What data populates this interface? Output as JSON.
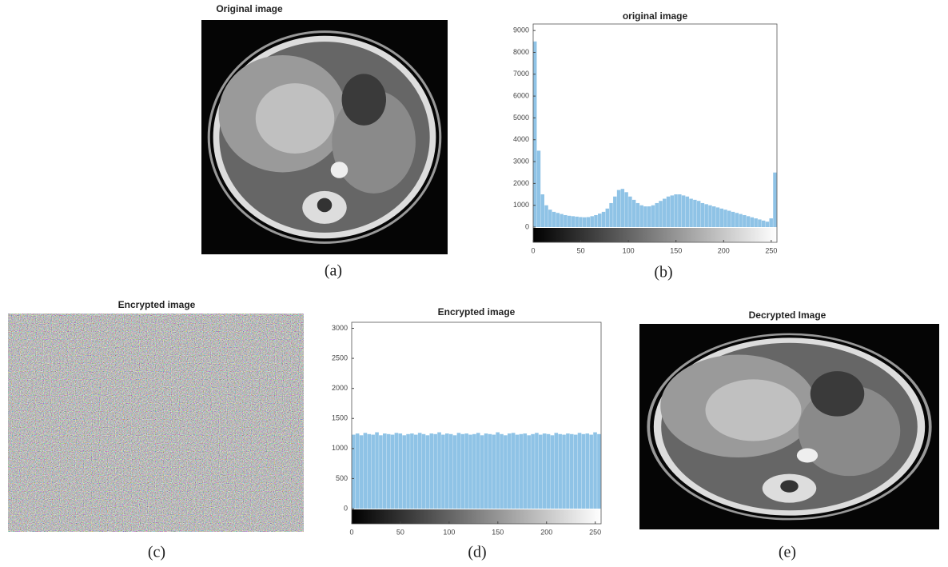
{
  "panels": [
    {
      "title": "Original image",
      "caption": "(a)"
    },
    {
      "title": "Encrypted image",
      "caption": "(c)"
    },
    {
      "title": "Decrypted Image",
      "caption": "(e)"
    }
  ],
  "chart_data": [
    {
      "type": "histogram",
      "title": "original image",
      "caption": "(b)",
      "color": "#8fc3e6",
      "bins": [
        0,
        4,
        8,
        12,
        16,
        20,
        24,
        28,
        32,
        36,
        40,
        44,
        48,
        52,
        56,
        60,
        64,
        68,
        72,
        76,
        80,
        84,
        88,
        92,
        96,
        100,
        104,
        108,
        112,
        116,
        120,
        124,
        128,
        132,
        136,
        140,
        144,
        148,
        152,
        156,
        160,
        164,
        168,
        172,
        176,
        180,
        184,
        188,
        192,
        196,
        200,
        204,
        208,
        212,
        216,
        220,
        224,
        228,
        232,
        236,
        240,
        244,
        248,
        252,
        256
      ],
      "values": [
        8500,
        3500,
        1500,
        1000,
        800,
        700,
        650,
        600,
        550,
        520,
        500,
        480,
        460,
        450,
        460,
        500,
        550,
        620,
        700,
        850,
        1100,
        1400,
        1700,
        1750,
        1600,
        1400,
        1250,
        1100,
        1000,
        950,
        950,
        1000,
        1100,
        1200,
        1300,
        1400,
        1450,
        1500,
        1500,
        1450,
        1400,
        1300,
        1250,
        1200,
        1100,
        1050,
        1000,
        950,
        900,
        850,
        800,
        750,
        700,
        650,
        600,
        550,
        500,
        450,
        400,
        350,
        300,
        250,
        400,
        2500
      ],
      "xlim": [
        0,
        256
      ],
      "xticks": [
        0,
        50,
        100,
        150,
        200,
        250
      ],
      "ylim": [
        0,
        9300
      ],
      "yticks": [
        0,
        1000,
        2000,
        3000,
        4000,
        5000,
        6000,
        7000,
        8000,
        9000
      ]
    },
    {
      "type": "histogram",
      "title": "Encrypted image",
      "caption": "(d)",
      "color": "#8fc3e6",
      "bins": [
        0,
        4,
        8,
        12,
        16,
        20,
        24,
        28,
        32,
        36,
        40,
        44,
        48,
        52,
        56,
        60,
        64,
        68,
        72,
        76,
        80,
        84,
        88,
        92,
        96,
        100,
        104,
        108,
        112,
        116,
        120,
        124,
        128,
        132,
        136,
        140,
        144,
        148,
        152,
        156,
        160,
        164,
        168,
        172,
        176,
        180,
        184,
        188,
        192,
        196,
        200,
        204,
        208,
        212,
        216,
        220,
        224,
        228,
        232,
        236,
        240,
        244,
        248,
        252,
        256
      ],
      "values": [
        1230,
        1250,
        1220,
        1260,
        1240,
        1230,
        1270,
        1220,
        1250,
        1240,
        1230,
        1260,
        1250,
        1220,
        1240,
        1250,
        1230,
        1260,
        1240,
        1220,
        1250,
        1240,
        1270,
        1230,
        1250,
        1240,
        1220,
        1260,
        1240,
        1250,
        1230,
        1240,
        1260,
        1220,
        1250,
        1240,
        1230,
        1270,
        1240,
        1220,
        1250,
        1260,
        1230,
        1240,
        1250,
        1220,
        1240,
        1260,
        1230,
        1250,
        1240,
        1220,
        1260,
        1240,
        1230,
        1250,
        1240,
        1230,
        1260,
        1240,
        1250,
        1230,
        1270,
        1240
      ],
      "xlim": [
        0,
        256
      ],
      "xticks": [
        0,
        50,
        100,
        150,
        200,
        250
      ],
      "ylim": [
        0,
        3100
      ],
      "yticks": [
        0,
        500,
        1000,
        1500,
        2000,
        2500,
        3000
      ]
    }
  ]
}
